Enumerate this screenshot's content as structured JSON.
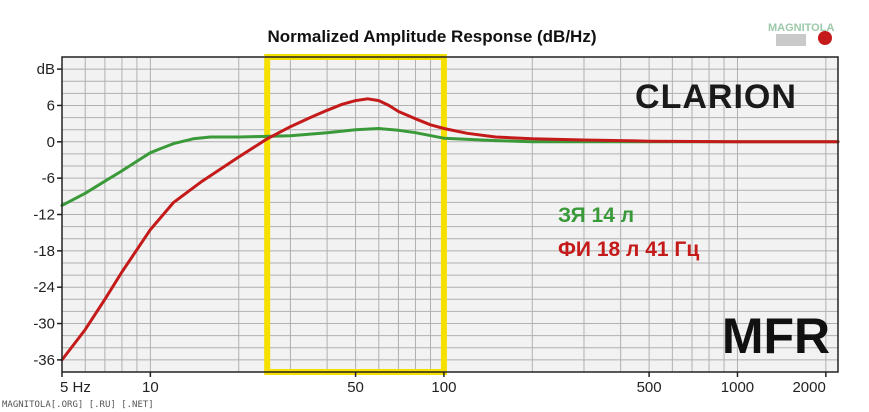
{
  "chart_data": {
    "type": "line",
    "title": "Normalized Amplitude Response (dB/Hz)",
    "xscale": "log",
    "xlim": [
      5,
      2200
    ],
    "ylim": [
      -38,
      14
    ],
    "grid": true,
    "x_ticks": [
      {
        "value": 5,
        "label": "5 Hz"
      },
      {
        "value": 10,
        "label": "10"
      },
      {
        "value": 50,
        "label": "50"
      },
      {
        "value": 100,
        "label": "100"
      },
      {
        "value": 500,
        "label": "500"
      },
      {
        "value": 1000,
        "label": "1000"
      },
      {
        "value": 2000,
        "label": "2000"
      }
    ],
    "y_ticks": [
      {
        "value": 12,
        "label": "dB"
      },
      {
        "value": 6,
        "label": "6"
      },
      {
        "value": 0,
        "label": "0"
      },
      {
        "value": -6,
        "label": "-6"
      },
      {
        "value": -12,
        "label": "-12"
      },
      {
        "value": -18,
        "label": "-18"
      },
      {
        "value": -24,
        "label": "-24"
      },
      {
        "value": -30,
        "label": "-30"
      },
      {
        "value": -36,
        "label": "-36"
      }
    ],
    "highlight": {
      "x_from": 25,
      "x_to": 100,
      "color": "#f5e000"
    },
    "series": [
      {
        "name": "ЗЯ 14 л",
        "color": "#3a9a3a",
        "x": [
          5,
          6,
          7,
          8,
          9,
          10,
          11,
          12,
          14,
          16,
          20,
          25,
          30,
          40,
          50,
          60,
          70,
          80,
          100,
          150,
          200,
          500,
          1000,
          2200
        ],
        "y": [
          -10.5,
          -8.5,
          -6.5,
          -4.8,
          -3.2,
          -1.8,
          -1,
          -0.3,
          0.5,
          0.8,
          0.8,
          0.9,
          1,
          1.5,
          2,
          2.2,
          1.9,
          1.5,
          0.6,
          0.2,
          0,
          0,
          0,
          0
        ]
      },
      {
        "name": "ФИ 18 л 41 Гц",
        "color": "#c41a1a",
        "x": [
          5,
          6,
          7,
          8,
          10,
          12,
          15,
          20,
          25,
          30,
          35,
          40,
          45,
          50,
          55,
          60,
          65,
          70,
          80,
          90,
          100,
          120,
          150,
          200,
          300,
          400,
          500,
          1000,
          2200
        ],
        "y": [
          -36,
          -31,
          -26,
          -21.5,
          -14.5,
          -10,
          -6.5,
          -2.5,
          0.5,
          2.5,
          4,
          5.2,
          6.2,
          6.8,
          7.1,
          6.8,
          6,
          5,
          3.8,
          2.8,
          2.2,
          1.4,
          0.8,
          0.5,
          0.3,
          0.2,
          0.1,
          0,
          0
        ]
      }
    ],
    "legend_placement": "right-middle"
  },
  "labels": {
    "brand": "CLARION",
    "mfr": "MFR",
    "watermark_text": "MAGNITOLA",
    "footer": "MAGNITOLA[.ORG] [.RU] [.NET]"
  },
  "colors": {
    "plot_bg": "#f2f2f2",
    "grid": "#b0b0b0",
    "axis": "#222222",
    "highlight": "#f5e000"
  }
}
